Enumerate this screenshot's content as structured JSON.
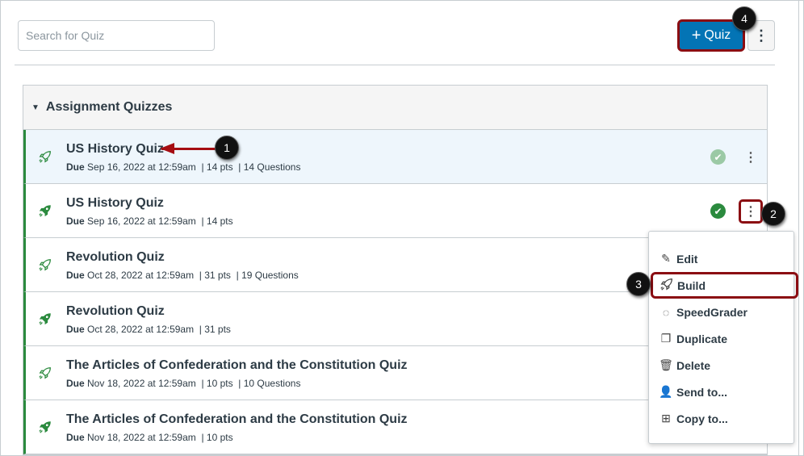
{
  "search": {
    "placeholder": "Search for Quiz"
  },
  "toolbar": {
    "add_quiz_label": "Quiz",
    "add_icon": "plus-icon",
    "more_icon": "kebab-icon"
  },
  "group": {
    "title": "Assignment Quizzes"
  },
  "quizzes": [
    {
      "title": "US History Quiz",
      "due_label": "Due",
      "due": "Sep 16, 2022 at 12:59am",
      "pts": "14 pts",
      "questions": "14 Questions",
      "icon": "rocket-outline-icon",
      "published": true
    },
    {
      "title": "US History Quiz",
      "due_label": "Due",
      "due": "Sep 16, 2022 at 12:59am",
      "pts": "14 pts",
      "questions": "",
      "icon": "rocket-filled-icon",
      "published": true
    },
    {
      "title": "Revolution Quiz",
      "due_label": "Due",
      "due": "Oct 28, 2022 at 12:59am",
      "pts": "31 pts",
      "questions": "19 Questions",
      "icon": "rocket-outline-icon"
    },
    {
      "title": "Revolution Quiz",
      "due_label": "Due",
      "due": "Oct 28, 2022 at 12:59am",
      "pts": "31 pts",
      "questions": "",
      "icon": "rocket-filled-icon"
    },
    {
      "title": "The Articles of Confederation and the Constitution Quiz",
      "due_label": "Due",
      "due": "Nov 18, 2022 at 12:59am",
      "pts": "10 pts",
      "questions": "10 Questions",
      "icon": "rocket-outline-icon"
    },
    {
      "title": "The Articles of Confederation and the Constitution Quiz",
      "due_label": "Due",
      "due": "Nov 18, 2022 at 12:59am",
      "pts": "10 pts",
      "questions": "",
      "icon": "rocket-filled-icon"
    }
  ],
  "menu": [
    {
      "label": "Edit",
      "icon": "pencil-icon",
      "glyph": "✎"
    },
    {
      "label": "Build",
      "icon": "rocket-icon",
      "glyph": "🚀"
    },
    {
      "label": "SpeedGrader",
      "icon": "speedgrader-icon",
      "glyph": "◌"
    },
    {
      "label": "Duplicate",
      "icon": "duplicate-icon",
      "glyph": "❐"
    },
    {
      "label": "Delete",
      "icon": "trash-icon",
      "glyph": "🗑"
    },
    {
      "label": "Send to...",
      "icon": "user-icon",
      "glyph": "👤"
    },
    {
      "label": "Copy to...",
      "icon": "copy-icon",
      "glyph": "⊞"
    }
  ],
  "callouts": [
    "1",
    "2",
    "3",
    "4"
  ],
  "colors": {
    "accent": "#0374B5",
    "published": "#2B8A3E",
    "callout_outline": "#8B0D12"
  }
}
